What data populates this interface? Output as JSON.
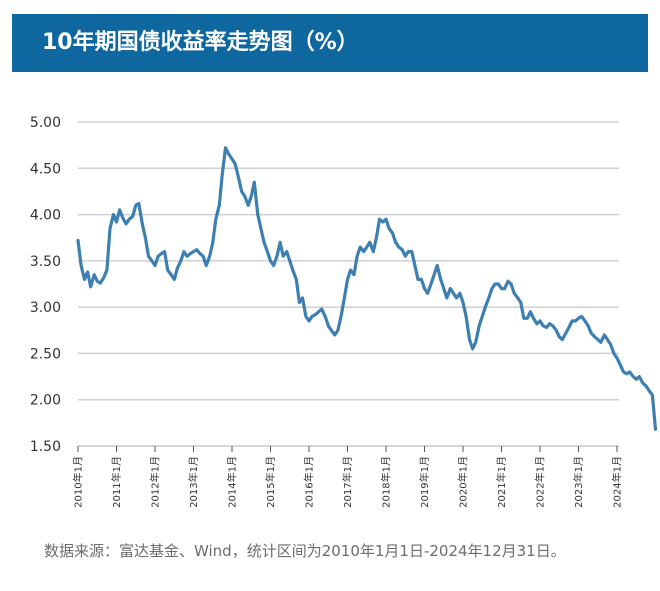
{
  "header": {
    "title": "10年期国债收益率走势图（%）"
  },
  "footer": {
    "source_note": "数据来源：富达基金、Wind，统计区间为2010年1月1日-2024年12月31日。"
  },
  "colors": {
    "title_bar": "#0f67a0",
    "line": "#3c7fb0",
    "grid": "#cfcfd6"
  },
  "chart_data": {
    "type": "line",
    "title": "10年期国债收益率走势图（%）",
    "xlabel": "",
    "ylabel": "",
    "ylim": [
      1.5,
      5.0
    ],
    "grid": true,
    "legend": "none",
    "y_ticks": [
      "5.00",
      "4.50",
      "4.00",
      "3.50",
      "3.00",
      "2.50",
      "2.00",
      "1.50"
    ],
    "x_ticks": [
      "2010年1月",
      "2011年1月",
      "2012年1月",
      "2013年1月",
      "2014年1月",
      "2015年1月",
      "2016年1月",
      "2017年1月",
      "2018年1月",
      "2019年1月",
      "2020年1月",
      "2021年1月",
      "2022年1月",
      "2023年1月",
      "2024年1月"
    ],
    "xlim": [
      2010.0,
      2025.0
    ],
    "series": [
      {
        "x": [
          2010.0,
          2010.08,
          2010.17,
          2010.25,
          2010.33,
          2010.42,
          2010.5,
          2010.58,
          2010.67,
          2010.75,
          2010.83,
          2010.92,
          2011.0,
          2011.08,
          2011.17,
          2011.25,
          2011.33,
          2011.42,
          2011.5,
          2011.58,
          2011.67,
          2011.75,
          2011.83,
          2011.92,
          2012.0,
          2012.08,
          2012.17,
          2012.25,
          2012.33,
          2012.42,
          2012.5,
          2012.58,
          2012.67,
          2012.75,
          2012.83,
          2012.92,
          2013.0,
          2013.08,
          2013.17,
          2013.25,
          2013.33,
          2013.42,
          2013.5,
          2013.58,
          2013.67,
          2013.75,
          2013.83,
          2013.92,
          2014.0,
          2014.08,
          2014.17,
          2014.25,
          2014.33,
          2014.42,
          2014.5,
          2014.58,
          2014.67,
          2014.75,
          2014.83,
          2014.92,
          2015.0,
          2015.08,
          2015.17,
          2015.25,
          2015.33,
          2015.42,
          2015.5,
          2015.58,
          2015.67,
          2015.75,
          2015.83,
          2015.92,
          2016.0,
          2016.08,
          2016.17,
          2016.25,
          2016.33,
          2016.42,
          2016.5,
          2016.58,
          2016.67,
          2016.75,
          2016.83,
          2016.92,
          2017.0,
          2017.08,
          2017.17,
          2017.25,
          2017.33,
          2017.42,
          2017.5,
          2017.58,
          2017.67,
          2017.75,
          2017.83,
          2017.92,
          2018.0,
          2018.08,
          2018.17,
          2018.25,
          2018.33,
          2018.42,
          2018.5,
          2018.58,
          2018.67,
          2018.75,
          2018.83,
          2018.92,
          2019.0,
          2019.08,
          2019.17,
          2019.25,
          2019.33,
          2019.42,
          2019.5,
          2019.58,
          2019.67,
          2019.75,
          2019.83,
          2019.92,
          2020.0,
          2020.08,
          2020.17,
          2020.25,
          2020.33,
          2020.42,
          2020.5,
          2020.58,
          2020.67,
          2020.75,
          2020.83,
          2020.92,
          2021.0,
          2021.08,
          2021.17,
          2021.25,
          2021.33,
          2021.42,
          2021.5,
          2021.58,
          2021.67,
          2021.75,
          2021.83,
          2021.92,
          2022.0,
          2022.08,
          2022.17,
          2022.25,
          2022.33,
          2022.42,
          2022.5,
          2022.58,
          2022.67,
          2022.75,
          2022.83,
          2022.92,
          2023.0,
          2023.08,
          2023.17,
          2023.25,
          2023.33,
          2023.42,
          2023.5,
          2023.58,
          2023.67,
          2023.75,
          2023.83,
          2023.92,
          2024.0,
          2024.08,
          2024.17,
          2024.25,
          2024.33,
          2024.42,
          2024.5,
          2024.58,
          2024.67,
          2024.75,
          2024.83,
          2024.92,
          2025.0
        ],
        "values": [
          3.72,
          3.45,
          3.3,
          3.38,
          3.22,
          3.35,
          3.28,
          3.26,
          3.32,
          3.4,
          3.85,
          4.0,
          3.92,
          4.05,
          3.96,
          3.9,
          3.95,
          3.98,
          4.1,
          4.12,
          3.9,
          3.75,
          3.55,
          3.5,
          3.45,
          3.55,
          3.58,
          3.6,
          3.4,
          3.35,
          3.3,
          3.42,
          3.5,
          3.6,
          3.55,
          3.58,
          3.6,
          3.62,
          3.58,
          3.55,
          3.45,
          3.55,
          3.7,
          3.95,
          4.1,
          4.45,
          4.72,
          4.65,
          4.6,
          4.55,
          4.4,
          4.25,
          4.2,
          4.1,
          4.2,
          4.35,
          4.0,
          3.85,
          3.7,
          3.6,
          3.5,
          3.45,
          3.55,
          3.7,
          3.55,
          3.6,
          3.5,
          3.4,
          3.3,
          3.05,
          3.1,
          2.9,
          2.85,
          2.9,
          2.92,
          2.95,
          2.98,
          2.9,
          2.8,
          2.75,
          2.7,
          2.75,
          2.9,
          3.1,
          3.3,
          3.4,
          3.35,
          3.55,
          3.65,
          3.6,
          3.65,
          3.7,
          3.6,
          3.75,
          3.95,
          3.92,
          3.95,
          3.85,
          3.8,
          3.7,
          3.65,
          3.62,
          3.55,
          3.6,
          3.6,
          3.45,
          3.3,
          3.3,
          3.2,
          3.15,
          3.25,
          3.35,
          3.45,
          3.3,
          3.2,
          3.1,
          3.2,
          3.15,
          3.1,
          3.15,
          3.05,
          2.9,
          2.65,
          2.55,
          2.62,
          2.8,
          2.9,
          3.0,
          3.1,
          3.2,
          3.25,
          3.25,
          3.2,
          3.2,
          3.28,
          3.25,
          3.15,
          3.1,
          3.05,
          2.88,
          2.88,
          2.95,
          2.88,
          2.82,
          2.85,
          2.8,
          2.78,
          2.82,
          2.8,
          2.75,
          2.68,
          2.65,
          2.72,
          2.78,
          2.85,
          2.85,
          2.88,
          2.9,
          2.85,
          2.8,
          2.72,
          2.68,
          2.65,
          2.62,
          2.7,
          2.65,
          2.6,
          2.5,
          2.45,
          2.38,
          2.3,
          2.28,
          2.3,
          2.25,
          2.22,
          2.25,
          2.18,
          2.15,
          2.1,
          2.05,
          1.68
        ]
      }
    ]
  }
}
